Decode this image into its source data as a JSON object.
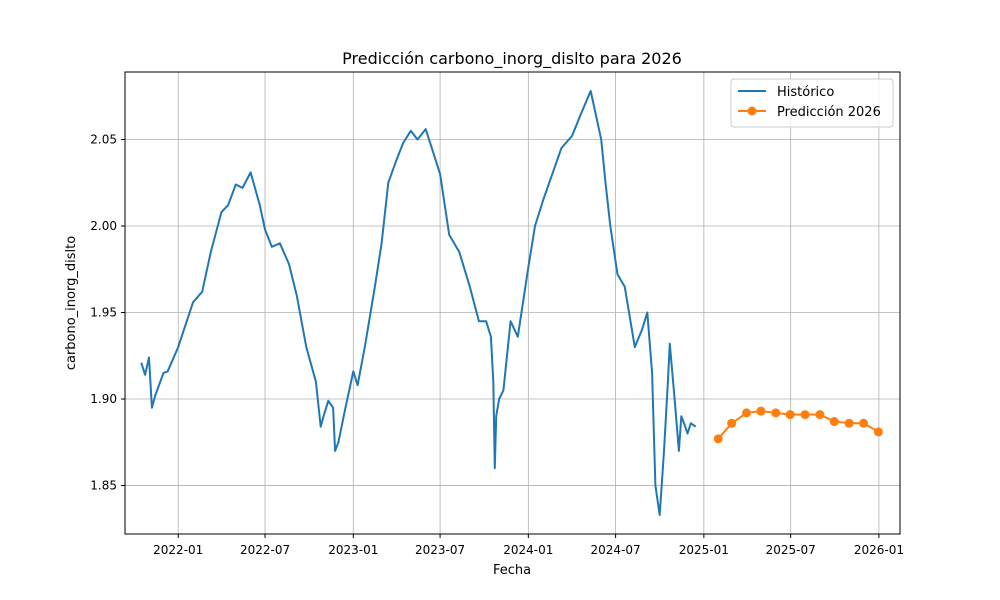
{
  "chart_data": {
    "type": "line",
    "title": "Predicción carbono_inorg_dislto para 2026",
    "xlabel": "Fecha",
    "ylabel": "carbono_inorg_dislto",
    "grid": true,
    "legend_position": "top-right",
    "xlim": [
      "2021-09-12",
      "2026-02-14"
    ],
    "ylim": [
      1.822,
      2.089
    ],
    "x_ticks": [
      "2022-01",
      "2022-07",
      "2023-01",
      "2023-07",
      "2024-01",
      "2024-07",
      "2025-01",
      "2025-07",
      "2026-01"
    ],
    "y_ticks": [
      1.85,
      1.9,
      1.95,
      2.0,
      2.05
    ],
    "y_tick_labels": [
      "1.85",
      "1.90",
      "1.95",
      "2.00",
      "2.05"
    ],
    "series": [
      {
        "name": "Histórico",
        "color": "#1f77b4",
        "marker": "none",
        "x": [
          "2021-10-16",
          "2021-10-24",
          "2021-11-01",
          "2021-11-07",
          "2021-11-14",
          "2021-12-01",
          "2021-12-10",
          "2022-01-01",
          "2022-02-01",
          "2022-02-20",
          "2022-03-10",
          "2022-04-01",
          "2022-04-15",
          "2022-05-01",
          "2022-05-15",
          "2022-06-01",
          "2022-06-20",
          "2022-07-01",
          "2022-07-15",
          "2022-08-01",
          "2022-08-20",
          "2022-09-05",
          "2022-09-25",
          "2022-10-15",
          "2022-10-25",
          "2022-11-01",
          "2022-11-10",
          "2022-11-20",
          "2022-11-24",
          "2022-12-01",
          "2022-12-15",
          "2023-01-01",
          "2023-01-10",
          "2023-01-25",
          "2023-02-15",
          "2023-03-01",
          "2023-03-15",
          "2023-04-01",
          "2023-04-15",
          "2023-05-01",
          "2023-05-15",
          "2023-06-01",
          "2023-06-15",
          "2023-07-01",
          "2023-07-20",
          "2023-08-10",
          "2023-09-01",
          "2023-09-20",
          "2023-10-05",
          "2023-10-15",
          "2023-10-20",
          "2023-10-23",
          "2023-10-26",
          "2023-11-01",
          "2023-11-10",
          "2023-11-25",
          "2023-12-10",
          "2024-01-01",
          "2024-01-15",
          "2024-02-01",
          "2024-02-20",
          "2024-03-10",
          "2024-04-01",
          "2024-04-20",
          "2024-05-10",
          "2024-06-01",
          "2024-06-10",
          "2024-06-20",
          "2024-07-05",
          "2024-07-20",
          "2024-08-10",
          "2024-08-25",
          "2024-09-05",
          "2024-09-15",
          "2024-09-22",
          "2024-10-01",
          "2024-10-10",
          "2024-10-18",
          "2024-10-22",
          "2024-11-01",
          "2024-11-10",
          "2024-11-15",
          "2024-11-22",
          "2024-11-28",
          "2024-12-05",
          "2024-12-15"
        ],
        "y": [
          1.921,
          1.914,
          1.924,
          1.895,
          1.902,
          1.915,
          1.916,
          1.93,
          1.956,
          1.962,
          1.985,
          2.008,
          2.012,
          2.024,
          2.022,
          2.031,
          2.012,
          1.998,
          1.988,
          1.99,
          1.978,
          1.96,
          1.93,
          1.91,
          1.884,
          1.891,
          1.899,
          1.895,
          1.87,
          1.875,
          1.894,
          1.916,
          1.908,
          1.93,
          1.965,
          1.99,
          2.025,
          2.038,
          2.048,
          2.055,
          2.05,
          2.056,
          2.044,
          2.03,
          1.995,
          1.985,
          1.965,
          1.945,
          1.945,
          1.936,
          1.91,
          1.86,
          1.89,
          1.9,
          1.905,
          1.945,
          1.936,
          1.976,
          2.0,
          2.015,
          2.03,
          2.045,
          2.052,
          2.065,
          2.078,
          2.05,
          2.025,
          2.0,
          1.972,
          1.965,
          1.93,
          1.94,
          1.95,
          1.915,
          1.85,
          1.833,
          1.87,
          1.91,
          1.932,
          1.9,
          1.87,
          1.89,
          1.885,
          1.88,
          1.886,
          1.884
        ]
      },
      {
        "name": "Predicción 2026",
        "color": "#ff7f0e",
        "marker": "circle",
        "x": [
          "2025-01-31",
          "2025-02-28",
          "2025-03-31",
          "2025-04-30",
          "2025-05-31",
          "2025-06-30",
          "2025-07-31",
          "2025-08-31",
          "2025-09-30",
          "2025-10-31",
          "2025-11-30",
          "2025-12-31"
        ],
        "y": [
          1.877,
          1.886,
          1.892,
          1.893,
          1.892,
          1.891,
          1.891,
          1.891,
          1.887,
          1.886,
          1.886,
          1.881
        ]
      }
    ]
  }
}
